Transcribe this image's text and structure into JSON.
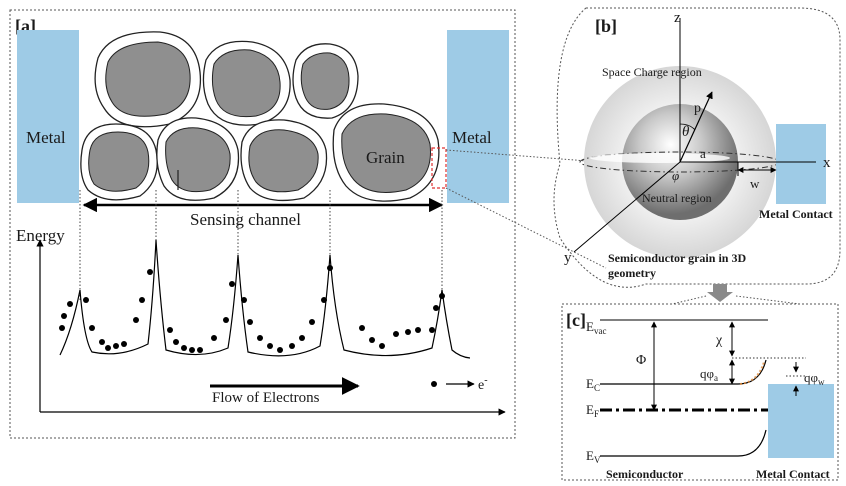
{
  "panel_a": {
    "tag": "[a]",
    "metal_left": "Metal",
    "metal_right": "Metal",
    "grain": "Grain",
    "sensing_channel": "Sensing channel",
    "energy": "Energy",
    "flow": "Flow of Electrons",
    "electron": "e",
    "electron_sup": "-"
  },
  "panel_b": {
    "tag": "[b]",
    "axis_z": "z",
    "axis_x": "x",
    "axis_y": "y",
    "space_charge": "Space Charge region",
    "p": "p",
    "theta": "θ",
    "a": "a",
    "phi": "φ",
    "w": "w",
    "neutral": "Neutral region",
    "metal_contact": "Metal Contact",
    "grain_3d_line1": "Semiconductor grain in 3D",
    "grain_3d_line2": "geometry"
  },
  "panel_c": {
    "tag": "[c]",
    "evac_main": "E",
    "evac_sub": "vac",
    "chi": "χ",
    "Phi": "Φ",
    "qphi_a_main": "qφ",
    "qphi_a_sub": "a",
    "qphi_w_main": "qφ",
    "qphi_w_sub": "w",
    "ec_main": "E",
    "ec_sub": "C",
    "ef_main": "E",
    "ef_sub": "F",
    "ev_main": "E",
    "ev_sub": "V",
    "semiconductor": "Semiconductor",
    "metal_contact": "Metal Contact"
  },
  "colors": {
    "metal": "#9ecbe6",
    "grain": "#8f8f8f",
    "red_dash": "#e03030"
  }
}
